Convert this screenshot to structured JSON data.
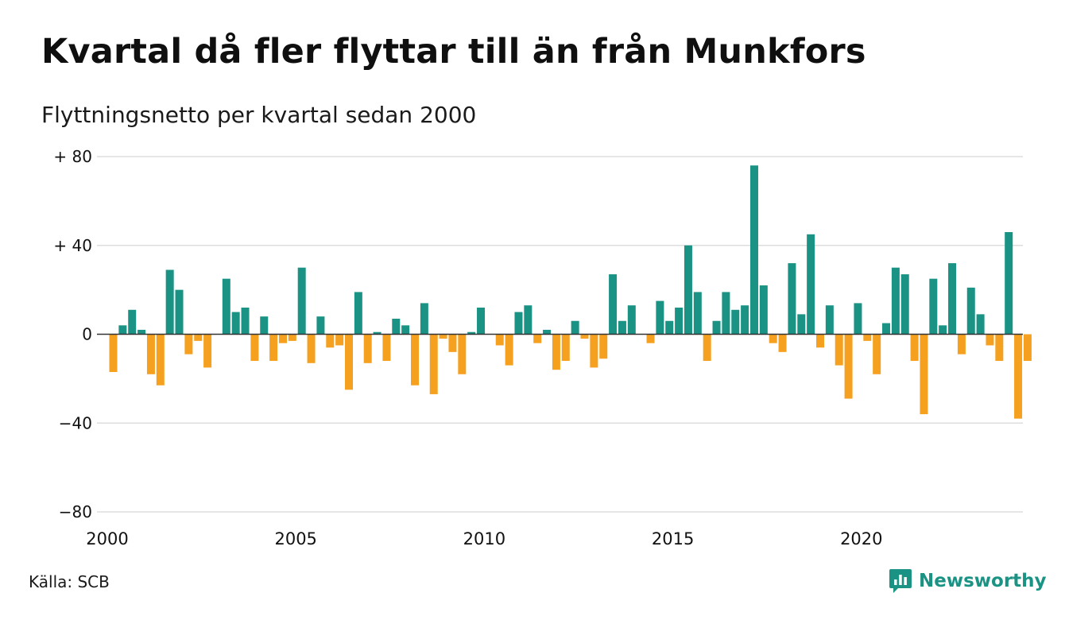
{
  "header": {
    "title": "Kvartal då fler flyttar till än från Munkfors",
    "subtitle": "Flyttningsnetto per kvartal sedan 2000"
  },
  "footer": {
    "source": "Källa: SCB",
    "brand": "Newsworthy",
    "brand_icon": "bar-chart-logo-icon"
  },
  "colors": {
    "positive": "#1a9384",
    "negative": "#f5a11f",
    "grid": "#dddddd",
    "zero_line": "#333333",
    "text": "#111111",
    "brand": "#1a9384"
  },
  "chart_data": {
    "type": "bar",
    "title": "Kvartal då fler flyttar till än från Munkfors",
    "subtitle": "Flyttningsnetto per kvartal sedan 2000",
    "xlabel": "",
    "ylabel": "",
    "ylim": [
      -80,
      80
    ],
    "yticks": [
      80,
      40,
      0,
      -40,
      -80
    ],
    "ytick_labels": [
      "+ 80",
      "+ 40",
      "0",
      "−40",
      "−80"
    ],
    "xticks": [
      2000,
      2005,
      2010,
      2015,
      2020
    ],
    "xtick_labels": [
      "2000",
      "2005",
      "2010",
      "2015",
      "2020"
    ],
    "grid": true,
    "start_year": 2000,
    "categories": [
      "2000 K1",
      "2000 K2",
      "2000 K3",
      "2000 K4",
      "2001 K1",
      "2001 K2",
      "2001 K3",
      "2001 K4",
      "2002 K1",
      "2002 K2",
      "2002 K3",
      "2002 K4",
      "2003 K1",
      "2003 K2",
      "2003 K3",
      "2003 K4",
      "2004 K1",
      "2004 K2",
      "2004 K3",
      "2004 K4",
      "2005 K1",
      "2005 K2",
      "2005 K3",
      "2005 K4",
      "2006 K1",
      "2006 K2",
      "2006 K3",
      "2006 K4",
      "2007 K1",
      "2007 K2",
      "2007 K3",
      "2007 K4",
      "2008 K1",
      "2008 K2",
      "2008 K3",
      "2008 K4",
      "2009 K1",
      "2009 K2",
      "2009 K3",
      "2009 K4",
      "2010 K1",
      "2010 K2",
      "2010 K3",
      "2010 K4",
      "2011 K1",
      "2011 K2",
      "2011 K3",
      "2011 K4",
      "2012 K1",
      "2012 K2",
      "2012 K3",
      "2012 K4",
      "2013 K1",
      "2013 K2",
      "2013 K3",
      "2013 K4",
      "2014 K1",
      "2014 K2",
      "2014 K3",
      "2014 K4",
      "2015 K1",
      "2015 K2",
      "2015 K3",
      "2015 K4",
      "2016 K1",
      "2016 K2",
      "2016 K3",
      "2016 K4",
      "2017 K1",
      "2017 K2",
      "2017 K3",
      "2017 K4",
      "2018 K1",
      "2018 K2",
      "2018 K3",
      "2018 K4",
      "2019 K1",
      "2019 K2",
      "2019 K3",
      "2019 K4",
      "2020 K1",
      "2020 K2",
      "2020 K3",
      "2020 K4",
      "2021 K1",
      "2021 K2",
      "2021 K3",
      "2021 K4",
      "2022 K1",
      "2022 K2",
      "2022 K3",
      "2022 K4",
      "2023 K1",
      "2023 K2",
      "2023 K3",
      "2023 K4",
      "2024 K1",
      "2024 K2"
    ],
    "values": [
      -17,
      4,
      11,
      2,
      -18,
      -23,
      29,
      20,
      -9,
      -3,
      -15,
      0,
      25,
      10,
      12,
      -12,
      8,
      -12,
      -4,
      -3,
      30,
      -13,
      8,
      -6,
      -5,
      -25,
      19,
      -13,
      1,
      -12,
      7,
      4,
      -23,
      14,
      -27,
      -2,
      -8,
      -18,
      1,
      12,
      0,
      -5,
      -14,
      10,
      13,
      -4,
      2,
      -16,
      -12,
      6,
      -2,
      -15,
      -11,
      27,
      6,
      13,
      0,
      -4,
      15,
      6,
      12,
      40,
      19,
      -12,
      6,
      19,
      11,
      13,
      76,
      22,
      -4,
      -8,
      32,
      9,
      45,
      -6,
      13,
      -14,
      -29,
      14,
      -3,
      -18,
      5,
      30,
      27,
      -12,
      -36,
      25,
      4,
      32,
      -9,
      21,
      9,
      -5,
      -12,
      46,
      -38,
      -12
    ]
  }
}
